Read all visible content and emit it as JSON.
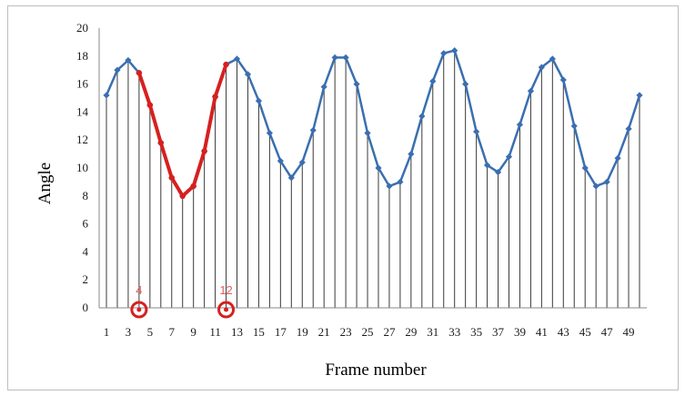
{
  "chart_data": {
    "type": "line",
    "title": "",
    "xlabel": "Frame number",
    "ylabel": "Angle",
    "ylim": [
      0,
      20
    ],
    "yticks": [
      0,
      2,
      4,
      6,
      8,
      10,
      12,
      14,
      16,
      18,
      20
    ],
    "xlim": [
      1,
      50
    ],
    "xtick_labels": [
      "1",
      "3",
      "5",
      "7",
      "9",
      "11",
      "13",
      "15",
      "17",
      "19",
      "21",
      "23",
      "25",
      "27",
      "29",
      "31",
      "33",
      "35",
      "37",
      "39",
      "41",
      "43",
      "45",
      "47",
      "49"
    ],
    "grid": "vertical drop lines at every frame",
    "series": [
      {
        "color": "#3a6fb0",
        "x": [
          1,
          2,
          3,
          4,
          5,
          6,
          7,
          8,
          9,
          10,
          11,
          12,
          13,
          14,
          15,
          16,
          17,
          18,
          19,
          20,
          21,
          22,
          23,
          24,
          25,
          26,
          27,
          28,
          29,
          30,
          31,
          32,
          33,
          34,
          35,
          36,
          37,
          38,
          39,
          40,
          41,
          42,
          43,
          44,
          45,
          46,
          47,
          48,
          49,
          50
        ],
        "y": [
          15.2,
          17.0,
          17.7,
          16.8,
          14.5,
          11.8,
          9.3,
          8.0,
          8.7,
          11.2,
          15.1,
          17.4,
          17.8,
          16.7,
          14.8,
          12.5,
          10.5,
          9.3,
          10.4,
          12.7,
          15.8,
          17.9,
          17.9,
          16.0,
          12.5,
          10.0,
          8.7,
          9.0,
          11.0,
          13.7,
          16.2,
          18.2,
          18.4,
          16.0,
          12.6,
          10.2,
          9.7,
          10.8,
          13.1,
          15.5,
          17.2,
          17.8,
          16.3,
          13.0,
          10.0,
          8.7,
          9.0,
          10.7,
          12.8,
          15.2
        ]
      },
      {
        "color": "#d62020",
        "x": [
          4,
          5,
          6,
          7,
          8,
          9,
          10,
          11,
          12
        ],
        "y": [
          16.8,
          14.5,
          11.8,
          9.3,
          8.0,
          8.7,
          11.2,
          15.1,
          17.4
        ]
      }
    ],
    "annotations": [
      {
        "text": "4",
        "x": 4,
        "y": 0
      },
      {
        "text": "12",
        "x": 12,
        "y": 0
      }
    ]
  }
}
